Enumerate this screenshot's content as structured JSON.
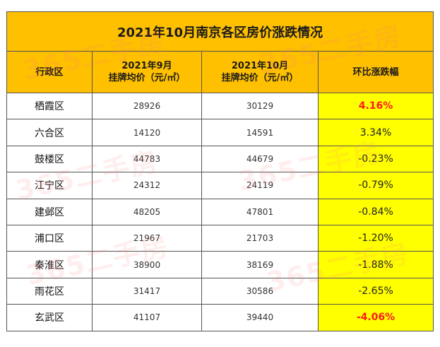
{
  "title": "2021年10月南京各区房价涨跌情况",
  "headers": {
    "district": "行政区",
    "sep_line1": "2021年9月",
    "sep_line2": "挂牌均价（元/㎡）",
    "oct_line1": "2021年10月",
    "oct_line2": "挂牌均价（元/㎡）",
    "change": "环比涨跌幅"
  },
  "rows": [
    {
      "district": "栖霞区",
      "sep": "28926",
      "oct": "30129",
      "change": "4.16%",
      "highlight": true
    },
    {
      "district": "六合区",
      "sep": "14120",
      "oct": "14591",
      "change": "3.34%",
      "highlight": false
    },
    {
      "district": "鼓楼区",
      "sep": "44783",
      "oct": "44679",
      "change": "-0.23%",
      "highlight": false
    },
    {
      "district": "江宁区",
      "sep": "24312",
      "oct": "24119",
      "change": "-0.79%",
      "highlight": false
    },
    {
      "district": "建邺区",
      "sep": "48205",
      "oct": "47801",
      "change": "-0.84%",
      "highlight": false
    },
    {
      "district": "浦口区",
      "sep": "21967",
      "oct": "21703",
      "change": "-1.20%",
      "highlight": false
    },
    {
      "district": "秦淮区",
      "sep": "38900",
      "oct": "38169",
      "change": "-1.88%",
      "highlight": false
    },
    {
      "district": "雨花区",
      "sep": "31417",
      "oct": "30586",
      "change": "-2.65%",
      "highlight": false
    },
    {
      "district": "玄武区",
      "sep": "41107",
      "oct": "39440",
      "change": "-4.06%",
      "highlight": true
    }
  ],
  "watermark": "365二手房",
  "colors": {
    "header_bg": "#FFC000",
    "change_bg": "#FFFF00",
    "highlight_text": "#FF1A1A",
    "border": "#555555"
  }
}
